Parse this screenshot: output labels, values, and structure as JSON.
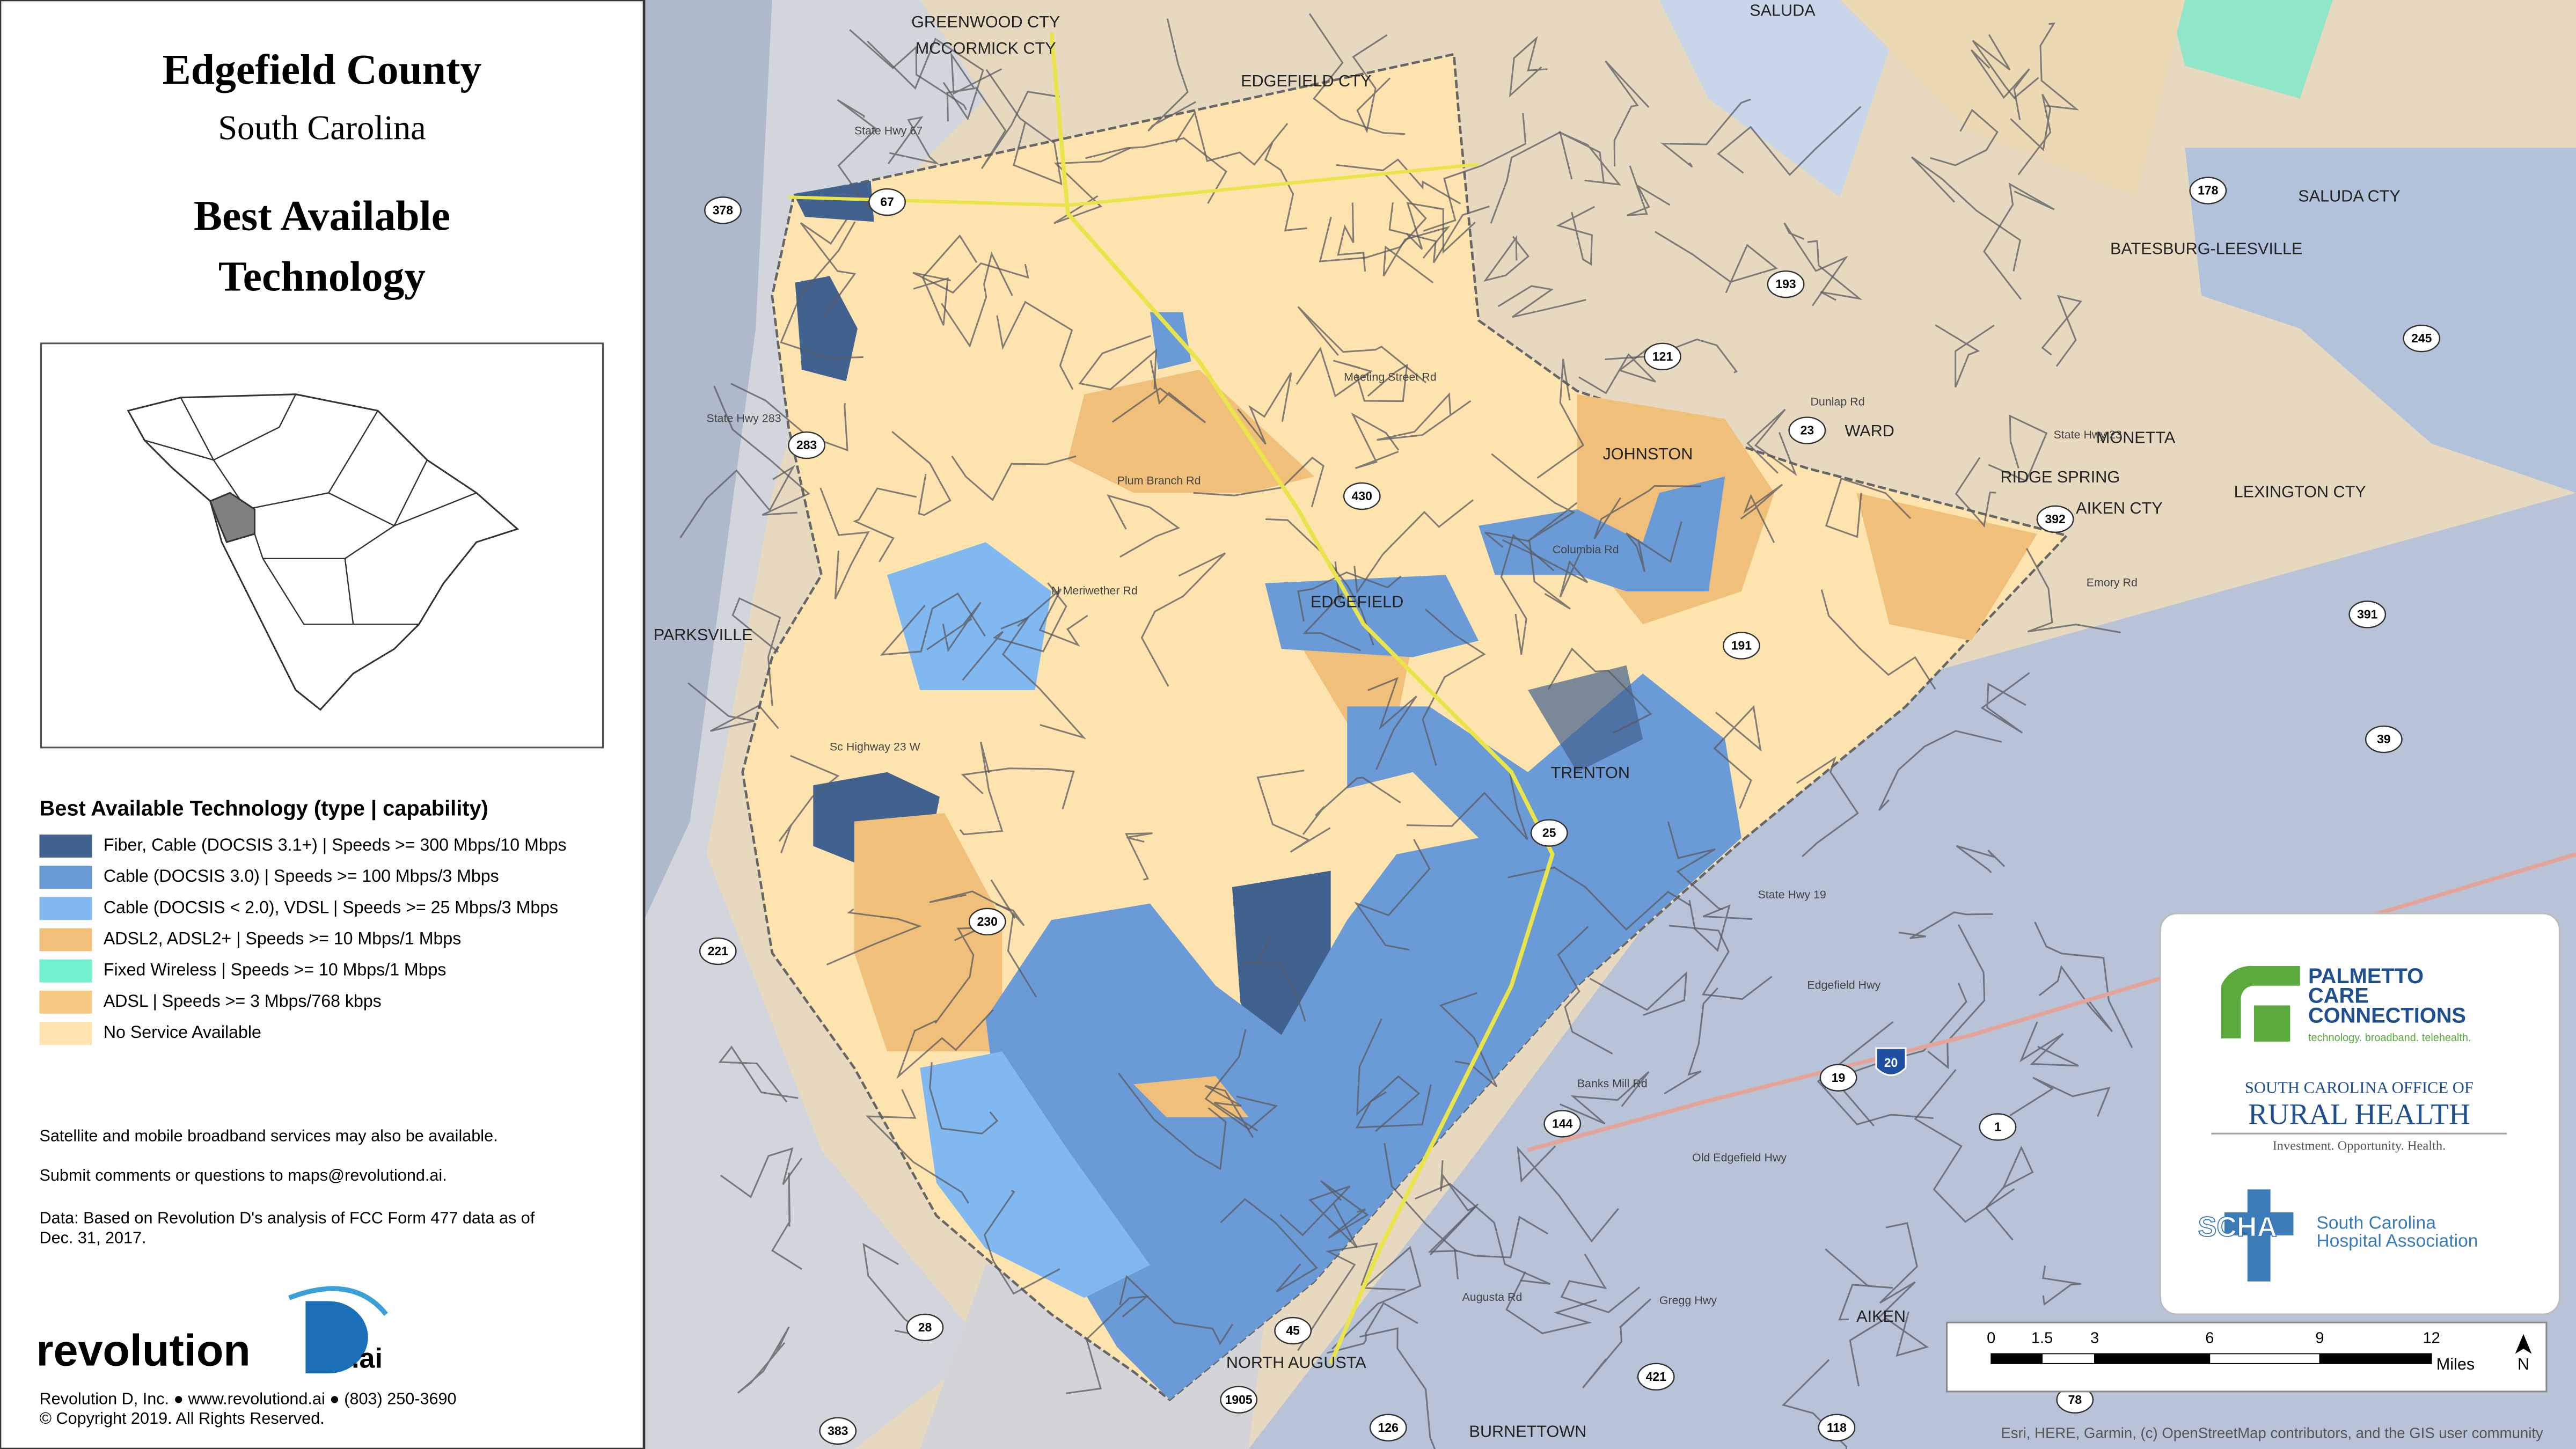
{
  "panel": {
    "title": "Edgefield County",
    "subtitle": "South Carolina",
    "heading_lines": [
      "Best Available",
      "Technology"
    ],
    "legend": {
      "title": "Best Available Technology (type | capability)",
      "items": [
        {
          "label": "Fiber, Cable (DOCSIS 3.1+) | Speeds >= 300 Mbps/10 Mbps",
          "color": "#41618f"
        },
        {
          "label": "Cable (DOCSIS 3.0) | Speeds >= 100 Mbps/3 Mbps",
          "color": "#6b9bd6"
        },
        {
          "label": "Cable (DOCSIS < 2.0), VDSL | Speeds >= 25 Mbps/3 Mbps",
          "color": "#82b8f0"
        },
        {
          "label": "ADSL2, ADSL2+ | Speeds >= 10 Mbps/1 Mbps",
          "color": "#f0c07a"
        },
        {
          "label": "Fixed Wireless | Speeds >= 10 Mbps/1 Mbps",
          "color": "#72f0cf"
        },
        {
          "label": " ADSL | Speeds >= 3 Mbps/768 kbps",
          "color": "#f6c985"
        },
        {
          "label": "No Service Available",
          "color": "#fde3ae"
        }
      ]
    },
    "notes": [
      "Satellite and mobile broadband services may also be available.",
      "Submit comments or questions to maps@revolutiond.ai."
    ],
    "data_note_lines": [
      "Data: Based on Revolution D's analysis of FCC Form 477 data as of",
      "Dec. 31, 2017."
    ],
    "logo": {
      "text": "revolution",
      "suffix": ".ai"
    },
    "footer": [
      "Revolution D, Inc. ● www.revolutiond.ai ● (803) 250-3690",
      "© Copyright 2019. All Rights Reserved."
    ]
  },
  "map": {
    "places": [
      "SALUDA",
      "GREENWOOD CTY",
      "MCCORMICK CTY",
      "EDGEFIELD CTY",
      "BATESBURG-LEESVILLE",
      "JOHNSTON",
      "WARD",
      "MONETTA",
      "RIDGE SPRING",
      "PARKSVILLE",
      "EDGEFIELD",
      "TRENTON",
      "AIKEN",
      "NORTH AUGUSTA",
      "BURNETTOWN",
      "SALUDA CTY",
      "LEXINGTON CTY",
      "AIKEN CTY"
    ],
    "roads": [
      "Plum Branch Rd",
      "Sc Highway 23 W",
      "State Hwy 283",
      "State Hwy 67",
      "N Meriwether Rd",
      "Meeting Street Rd",
      "Columbia Rd",
      "State Hwy 19",
      "Edgefield Hwy",
      "Old Edgefield Hwy",
      "Banks Mill Rd",
      "Gregg Hwy",
      "Augusta Rd",
      "State Hwy 23",
      "Dunlap Rd",
      "Emory Rd"
    ],
    "shields": [
      "378",
      "67",
      "283",
      "221",
      "230",
      "430",
      "193",
      "121",
      "23",
      "178",
      "245",
      "392",
      "191",
      "391",
      "39",
      "25",
      "19",
      "20",
      "144",
      "1",
      "45",
      "1905",
      "126",
      "421",
      "118",
      "78",
      "28",
      "383"
    ],
    "scale": {
      "ticks": [
        "0",
        "1.5",
        "3",
        "6",
        "9",
        "12"
      ],
      "unit": "Miles"
    },
    "north": "N",
    "attribution": "Esri, HERE, Garmin, (c) OpenStreetMap contributors, and the GIS user community"
  },
  "sponsors": {
    "pcc_lines": [
      "PALMETTO",
      "CARE",
      "CONNECTIONS"
    ],
    "pcc_tagline": "technology. broadband. telehealth.",
    "orh_top": "SOUTH CAROLINA OFFICE OF",
    "orh_name": "RURAL HEALTH",
    "orh_tagline": "Investment. Opportunity. Health.",
    "scha_abbr": "SCHA",
    "scha_lines": [
      "South Carolina",
      "Hospital Association"
    ]
  }
}
